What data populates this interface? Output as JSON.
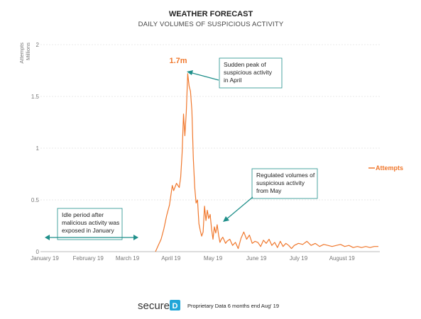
{
  "chart_data": {
    "type": "line",
    "title": "WEATHER FORECAST",
    "subtitle": "DAILY VOLUMES OF SUSPICIOUS ACTIVITY",
    "ylabel": "Attempts",
    "yunit": "Millions",
    "ylim": [
      0,
      2
    ],
    "yticks": [
      "0",
      "0.5",
      "1",
      "1.5",
      "2"
    ],
    "xticks": [
      "January 19",
      "February 19",
      "March 19",
      "April 19",
      "May 19",
      "June 19",
      "July 19",
      "August 19"
    ],
    "grid": true,
    "legend": "right",
    "series": [
      {
        "name": "Attempts",
        "color": "#f0782d",
        "x": [
          "2019-03-24",
          "2019-03-26",
          "2019-03-28",
          "2019-03-30",
          "2019-04-01",
          "2019-04-03",
          "2019-04-05",
          "2019-04-06",
          "2019-04-08",
          "2019-04-10",
          "2019-04-11",
          "2019-04-12",
          "2019-04-13",
          "2019-04-14",
          "2019-04-15",
          "2019-04-16",
          "2019-04-17",
          "2019-04-18",
          "2019-04-19",
          "2019-04-20",
          "2019-04-21",
          "2019-04-22",
          "2019-04-23",
          "2019-04-24",
          "2019-04-25",
          "2019-04-26",
          "2019-04-27",
          "2019-04-28",
          "2019-04-29",
          "2019-04-30",
          "2019-05-01",
          "2019-05-02",
          "2019-05-03",
          "2019-05-04",
          "2019-05-05",
          "2019-05-06",
          "2019-05-07",
          "2019-05-08",
          "2019-05-09",
          "2019-05-10",
          "2019-05-11",
          "2019-05-12",
          "2019-05-13",
          "2019-05-14",
          "2019-05-16",
          "2019-05-18",
          "2019-05-20",
          "2019-05-22",
          "2019-05-24",
          "2019-05-26",
          "2019-05-28",
          "2019-05-30",
          "2019-06-01",
          "2019-06-03",
          "2019-06-05",
          "2019-06-07",
          "2019-06-09",
          "2019-06-11",
          "2019-06-13",
          "2019-06-15",
          "2019-06-17",
          "2019-06-19",
          "2019-06-21",
          "2019-06-23",
          "2019-06-25",
          "2019-06-27",
          "2019-06-29",
          "2019-07-01",
          "2019-07-04",
          "2019-07-07",
          "2019-07-10",
          "2019-07-13",
          "2019-07-16",
          "2019-07-19",
          "2019-07-22",
          "2019-07-25",
          "2019-07-28",
          "2019-07-31",
          "2019-08-03",
          "2019-08-06",
          "2019-08-09",
          "2019-08-12",
          "2019-08-15",
          "2019-08-18",
          "2019-08-21",
          "2019-08-24",
          "2019-08-27",
          "2019-08-30"
        ],
        "y": [
          0,
          0.06,
          0.12,
          0.22,
          0.35,
          0.45,
          0.64,
          0.59,
          0.66,
          0.62,
          0.72,
          0.95,
          1.33,
          1.12,
          1.35,
          1.72,
          1.6,
          1.55,
          1.36,
          0.9,
          0.62,
          0.47,
          0.5,
          0.27,
          0.2,
          0.15,
          0.19,
          0.44,
          0.3,
          0.4,
          0.32,
          0.36,
          0.22,
          0.12,
          0.24,
          0.18,
          0.26,
          0.16,
          0.09,
          0.12,
          0.14,
          0.11,
          0.08,
          0.1,
          0.12,
          0.06,
          0.09,
          0.03,
          0.13,
          0.19,
          0.12,
          0.16,
          0.08,
          0.1,
          0.09,
          0.05,
          0.11,
          0.08,
          0.12,
          0.06,
          0.09,
          0.04,
          0.1,
          0.05,
          0.08,
          0.06,
          0.03,
          0.06,
          0.08,
          0.07,
          0.1,
          0.06,
          0.08,
          0.05,
          0.07,
          0.06,
          0.05,
          0.06,
          0.07,
          0.05,
          0.06,
          0.04,
          0.05,
          0.04,
          0.05,
          0.04,
          0.05,
          0.05
        ]
      }
    ],
    "peak_label": "1.7m",
    "annotations": [
      {
        "id": "peak",
        "lines": [
          "Sudden peak of",
          "suspicious activity",
          "in April"
        ]
      },
      {
        "id": "regulated",
        "lines": [
          "Regulated volumes of",
          "suspicious activity",
          "from May"
        ]
      },
      {
        "id": "idle",
        "lines": [
          "Idle period after",
          "malicious activity was",
          "exposed in January"
        ]
      }
    ],
    "annotation_color": "#1f8f8a"
  },
  "footer": {
    "logo_text": "secure",
    "logo_mark": "D",
    "note": "Proprietary Data 6 months end Aug' 19"
  }
}
